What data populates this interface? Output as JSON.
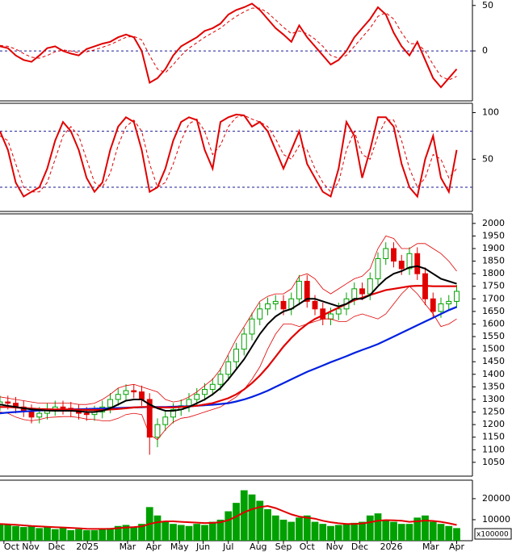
{
  "chart_data": [
    {
      "type": "line",
      "xlim": [
        0,
        60
      ],
      "ylim": [
        -55,
        56
      ],
      "yticks": [
        0,
        50
      ],
      "reference_lines": [
        0
      ],
      "series": [
        {
          "name": "MACD",
          "color": "#e00000",
          "values": [
            5,
            3,
            -5,
            -10,
            -12,
            -5,
            3,
            5,
            0,
            -3,
            -5,
            2,
            5,
            8,
            10,
            15,
            18,
            15,
            0,
            -35,
            -30,
            -20,
            -5,
            5,
            10,
            15,
            22,
            25,
            30,
            40,
            45,
            48,
            52,
            45,
            35,
            25,
            18,
            10,
            28,
            15,
            5,
            -5,
            -15,
            -10,
            0,
            15,
            25,
            35,
            48,
            40,
            20,
            5,
            -5,
            10,
            -10,
            -30,
            -40,
            -30,
            -20
          ]
        },
        {
          "name": "Signal",
          "color": "#e00000",
          "dash": true,
          "values": [
            6,
            5,
            2,
            -3,
            -7,
            -8,
            -5,
            -1,
            1,
            0,
            -2,
            -1,
            1,
            4,
            7,
            11,
            15,
            16,
            12,
            -5,
            -20,
            -24,
            -15,
            -5,
            3,
            9,
            15,
            20,
            25,
            32,
            38,
            43,
            47,
            47,
            42,
            34,
            26,
            19,
            22,
            19,
            13,
            5,
            -5,
            -8,
            -5,
            5,
            15,
            25,
            38,
            42,
            35,
            20,
            8,
            8,
            0,
            -15,
            -28,
            -32,
            -28
          ]
        }
      ]
    },
    {
      "type": "line",
      "xlim": [
        0,
        60
      ],
      "ylim": [
        -6,
        110
      ],
      "yticks": [
        50,
        100
      ],
      "reference_lines": [
        20,
        80
      ],
      "series": [
        {
          "name": "%K",
          "color": "#e00000",
          "values": [
            80,
            60,
            25,
            10,
            15,
            20,
            40,
            70,
            90,
            80,
            60,
            30,
            15,
            25,
            60,
            85,
            95,
            90,
            60,
            15,
            20,
            40,
            70,
            90,
            95,
            92,
            60,
            40,
            90,
            95,
            98,
            97,
            85,
            90,
            80,
            60,
            40,
            60,
            80,
            45,
            30,
            15,
            10,
            40,
            90,
            75,
            30,
            60,
            95,
            95,
            85,
            45,
            20,
            10,
            50,
            75,
            30,
            15,
            60
          ]
        },
        {
          "name": "%D",
          "color": "#e00000",
          "dash": true,
          "values": [
            75,
            70,
            45,
            20,
            15,
            15,
            25,
            50,
            75,
            85,
            75,
            50,
            25,
            20,
            35,
            65,
            85,
            92,
            80,
            45,
            20,
            25,
            45,
            70,
            88,
            93,
            80,
            55,
            65,
            85,
            95,
            97,
            93,
            90,
            85,
            72,
            55,
            50,
            65,
            60,
            40,
            25,
            15,
            25,
            60,
            80,
            55,
            50,
            75,
            92,
            92,
            70,
            40,
            20,
            30,
            55,
            50,
            30,
            40
          ]
        }
      ]
    },
    {
      "type": "candlestick",
      "xlim": [
        0,
        60
      ],
      "ylim": [
        995,
        2038
      ],
      "yticks": [
        1050,
        1100,
        1150,
        1200,
        1250,
        1300,
        1350,
        1400,
        1450,
        1500,
        1550,
        1600,
        1650,
        1700,
        1750,
        1800,
        1850,
        1900,
        1950,
        2000
      ],
      "up_color": "#00a000",
      "down_color": "#e00000",
      "open": [
        1280,
        1290,
        1285,
        1270,
        1255,
        1230,
        1245,
        1260,
        1270,
        1265,
        1255,
        1245,
        1240,
        1250,
        1270,
        1300,
        1320,
        1335,
        1330,
        1300,
        1150,
        1200,
        1230,
        1260,
        1275,
        1300,
        1320,
        1340,
        1360,
        1400,
        1450,
        1500,
        1560,
        1620,
        1660,
        1680,
        1690,
        1660,
        1700,
        1770,
        1690,
        1660,
        1620,
        1640,
        1660,
        1700,
        1740,
        1720,
        1780,
        1860,
        1900,
        1850,
        1820,
        1880,
        1800,
        1700,
        1650,
        1680,
        1690
      ],
      "high": [
        1315,
        1315,
        1310,
        1295,
        1280,
        1270,
        1285,
        1295,
        1295,
        1290,
        1280,
        1270,
        1275,
        1295,
        1325,
        1345,
        1360,
        1360,
        1355,
        1325,
        1225,
        1255,
        1285,
        1300,
        1325,
        1345,
        1365,
        1385,
        1425,
        1475,
        1525,
        1585,
        1645,
        1685,
        1705,
        1715,
        1715,
        1725,
        1795,
        1795,
        1715,
        1685,
        1665,
        1685,
        1725,
        1765,
        1765,
        1805,
        1885,
        1925,
        1925,
        1875,
        1905,
        1905,
        1825,
        1725,
        1705,
        1715,
        1755
      ],
      "low": [
        1255,
        1260,
        1245,
        1230,
        1205,
        1205,
        1220,
        1235,
        1240,
        1230,
        1220,
        1215,
        1215,
        1225,
        1245,
        1275,
        1295,
        1305,
        1275,
        1080,
        1110,
        1175,
        1205,
        1235,
        1250,
        1275,
        1295,
        1315,
        1335,
        1375,
        1425,
        1475,
        1535,
        1595,
        1635,
        1655,
        1635,
        1635,
        1675,
        1665,
        1635,
        1595,
        1595,
        1615,
        1635,
        1675,
        1695,
        1695,
        1755,
        1835,
        1825,
        1795,
        1795,
        1775,
        1675,
        1625,
        1625,
        1655,
        1665
      ],
      "close": [
        1290,
        1285,
        1270,
        1255,
        1230,
        1245,
        1260,
        1270,
        1265,
        1255,
        1245,
        1240,
        1250,
        1270,
        1300,
        1320,
        1335,
        1330,
        1300,
        1150,
        1200,
        1230,
        1260,
        1275,
        1300,
        1320,
        1340,
        1360,
        1400,
        1450,
        1500,
        1560,
        1620,
        1660,
        1680,
        1690,
        1660,
        1700,
        1770,
        1690,
        1660,
        1620,
        1640,
        1660,
        1700,
        1740,
        1720,
        1780,
        1860,
        1900,
        1850,
        1820,
        1880,
        1800,
        1700,
        1650,
        1680,
        1690,
        1730
      ],
      "series": [
        {
          "name": "Upper band",
          "color": "#e00000",
          "width": 0.8,
          "values": [
            1310,
            1305,
            1300,
            1295,
            1290,
            1285,
            1285,
            1285,
            1285,
            1285,
            1280,
            1280,
            1285,
            1300,
            1320,
            1345,
            1355,
            1360,
            1350,
            1340,
            1330,
            1300,
            1290,
            1295,
            1310,
            1330,
            1355,
            1380,
            1420,
            1480,
            1540,
            1590,
            1640,
            1690,
            1710,
            1720,
            1720,
            1740,
            1790,
            1800,
            1780,
            1740,
            1720,
            1740,
            1760,
            1780,
            1790,
            1820,
            1900,
            1950,
            1940,
            1900,
            1900,
            1920,
            1920,
            1900,
            1880,
            1850,
            1810
          ]
        },
        {
          "name": "Lower band",
          "color": "#e00000",
          "width": 0.8,
          "values": [
            1250,
            1245,
            1230,
            1220,
            1215,
            1220,
            1228,
            1230,
            1232,
            1232,
            1228,
            1222,
            1220,
            1215,
            1215,
            1225,
            1240,
            1245,
            1240,
            1160,
            1140,
            1180,
            1210,
            1225,
            1230,
            1240,
            1250,
            1260,
            1270,
            1290,
            1310,
            1340,
            1380,
            1430,
            1500,
            1560,
            1600,
            1600,
            1590,
            1600,
            1610,
            1620,
            1620,
            1610,
            1610,
            1630,
            1640,
            1630,
            1620,
            1640,
            1680,
            1720,
            1750,
            1720,
            1680,
            1640,
            1590,
            1600,
            1620
          ]
        },
        {
          "name": "MA200",
          "color": "#0020e0",
          "width": 2.2,
          "values": [
            1245,
            1248,
            1250,
            1252,
            1254,
            1256,
            1257,
            1258,
            1259,
            1260,
            1261,
            1262,
            1263,
            1264,
            1265,
            1266,
            1267,
            1268,
            1269,
            1270,
            1270,
            1270,
            1271,
            1272,
            1273,
            1275,
            1277,
            1279,
            1282,
            1285,
            1292,
            1300,
            1310,
            1322,
            1335,
            1350,
            1365,
            1380,
            1395,
            1410,
            1422,
            1435,
            1448,
            1460,
            1472,
            1485,
            1497,
            1508,
            1520,
            1535,
            1550,
            1565,
            1580,
            1595,
            1610,
            1625,
            1640,
            1655,
            1668
          ]
        },
        {
          "name": "MA50",
          "color": "#e00000",
          "width": 2.2,
          "values": [
            1270,
            1270,
            1268,
            1266,
            1264,
            1262,
            1261,
            1260,
            1260,
            1260,
            1259,
            1258,
            1258,
            1258,
            1260,
            1262,
            1265,
            1268,
            1270,
            1270,
            1268,
            1268,
            1268,
            1270,
            1272,
            1275,
            1280,
            1285,
            1295,
            1305,
            1320,
            1340,
            1365,
            1395,
            1430,
            1470,
            1510,
            1545,
            1575,
            1600,
            1620,
            1635,
            1650,
            1665,
            1680,
            1695,
            1705,
            1715,
            1725,
            1735,
            1740,
            1745,
            1750,
            1752,
            1752,
            1750,
            1750,
            1750,
            1750
          ]
        },
        {
          "name": "MA20",
          "color": "#000000",
          "width": 2,
          "values": [
            1280,
            1275,
            1270,
            1265,
            1260,
            1258,
            1256,
            1255,
            1255,
            1255,
            1253,
            1250,
            1250,
            1255,
            1265,
            1280,
            1295,
            1300,
            1300,
            1280,
            1265,
            1255,
            1255,
            1260,
            1270,
            1285,
            1300,
            1320,
            1345,
            1380,
            1420,
            1460,
            1510,
            1560,
            1600,
            1630,
            1650,
            1660,
            1680,
            1700,
            1700,
            1690,
            1680,
            1670,
            1680,
            1700,
            1700,
            1715,
            1750,
            1780,
            1800,
            1810,
            1825,
            1830,
            1820,
            1800,
            1780,
            1770,
            1760
          ]
        }
      ]
    },
    {
      "type": "bar",
      "xlim": [
        0,
        60
      ],
      "ylim": [
        0,
        28800
      ],
      "yticks": [
        10000,
        20000
      ],
      "unit_label": "x100000",
      "color": "#00a000",
      "values": [
        8000,
        7500,
        7000,
        6500,
        7000,
        6000,
        6500,
        5500,
        6000,
        5000,
        5500,
        5000,
        5000,
        5500,
        6000,
        7000,
        7500,
        6500,
        8000,
        16000,
        12000,
        9000,
        8000,
        7500,
        7000,
        8000,
        7500,
        9000,
        10000,
        14000,
        18000,
        24000,
        22000,
        19000,
        15000,
        12000,
        10000,
        9000,
        11000,
        12000,
        9000,
        8000,
        7000,
        7500,
        8000,
        8500,
        9000,
        12000,
        13000,
        10000,
        9000,
        8000,
        8000,
        11000,
        12000,
        9000,
        8000,
        7000,
        6000
      ],
      "series": [
        {
          "name": "Volume MA",
          "color": "#e00000",
          "width": 2,
          "values": [
            8000,
            7800,
            7600,
            7300,
            7000,
            6800,
            6600,
            6400,
            6300,
            6100,
            5900,
            5700,
            5600,
            5600,
            5700,
            6000,
            6300,
            6500,
            6800,
            8000,
            8800,
            9200,
            9200,
            9000,
            8800,
            8600,
            8400,
            8500,
            8800,
            9800,
            11500,
            13500,
            15000,
            16000,
            16500,
            15500,
            14000,
            12500,
            11500,
            11000,
            10500,
            9500,
            8800,
            8300,
            8000,
            8000,
            8200,
            8800,
            9500,
            9800,
            9700,
            9500,
            9000,
            9200,
            9600,
            9400,
            9000,
            8300,
            7500
          ]
        }
      ],
      "xticks": [
        {
          "value": 0.5,
          "label": "Oct"
        },
        {
          "value": 3.9,
          "label": "Nov"
        },
        {
          "value": 7.2,
          "label": "Dec"
        },
        {
          "value": 11.1,
          "label": "2025"
        },
        {
          "value": 16.2,
          "label": "Mar"
        },
        {
          "value": 19.5,
          "label": "Apr"
        },
        {
          "value": 22.8,
          "label": "May"
        },
        {
          "value": 25.8,
          "label": "Jun"
        },
        {
          "value": 29,
          "label": "Jul"
        },
        {
          "value": 32.8,
          "label": "Aug"
        },
        {
          "value": 36,
          "label": "Sep"
        },
        {
          "value": 39,
          "label": "Oct"
        },
        {
          "value": 42.5,
          "label": "Nov"
        },
        {
          "value": 45.7,
          "label": "Dec"
        },
        {
          "value": 49.7,
          "label": "2026"
        },
        {
          "value": 54.7,
          "label": "Mar"
        },
        {
          "value": 58,
          "label": "Apr"
        }
      ]
    }
  ]
}
